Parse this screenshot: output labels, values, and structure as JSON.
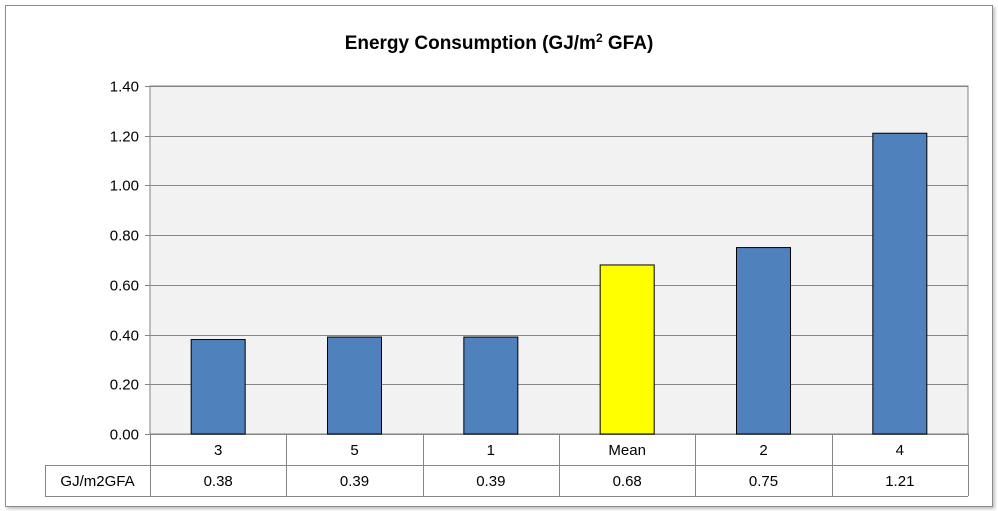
{
  "chart_data": {
    "type": "bar",
    "title": "Energy Consumption (GJ/m",
    "title_sup": "2",
    "title_suffix": " GFA)",
    "categories": [
      "3",
      "5",
      "1",
      "Mean",
      "2",
      "4"
    ],
    "values": [
      0.38,
      0.39,
      0.39,
      0.68,
      0.75,
      1.21
    ],
    "value_labels": [
      "0.38",
      "0.39",
      "0.39",
      "0.68",
      "0.75",
      "1.21"
    ],
    "bar_colors": [
      "#4F81BD",
      "#4F81BD",
      "#4F81BD",
      "#FFFF00",
      "#4F81BD",
      "#4F81BD"
    ],
    "ylim": [
      0,
      1.4
    ],
    "yticks": [
      "0.00",
      "0.20",
      "0.40",
      "0.60",
      "0.80",
      "1.00",
      "1.20",
      "1.40"
    ],
    "grid": true,
    "plot_background": "#F2F2F2",
    "data_table": {
      "row_label": "GJ/m2GFA"
    }
  }
}
